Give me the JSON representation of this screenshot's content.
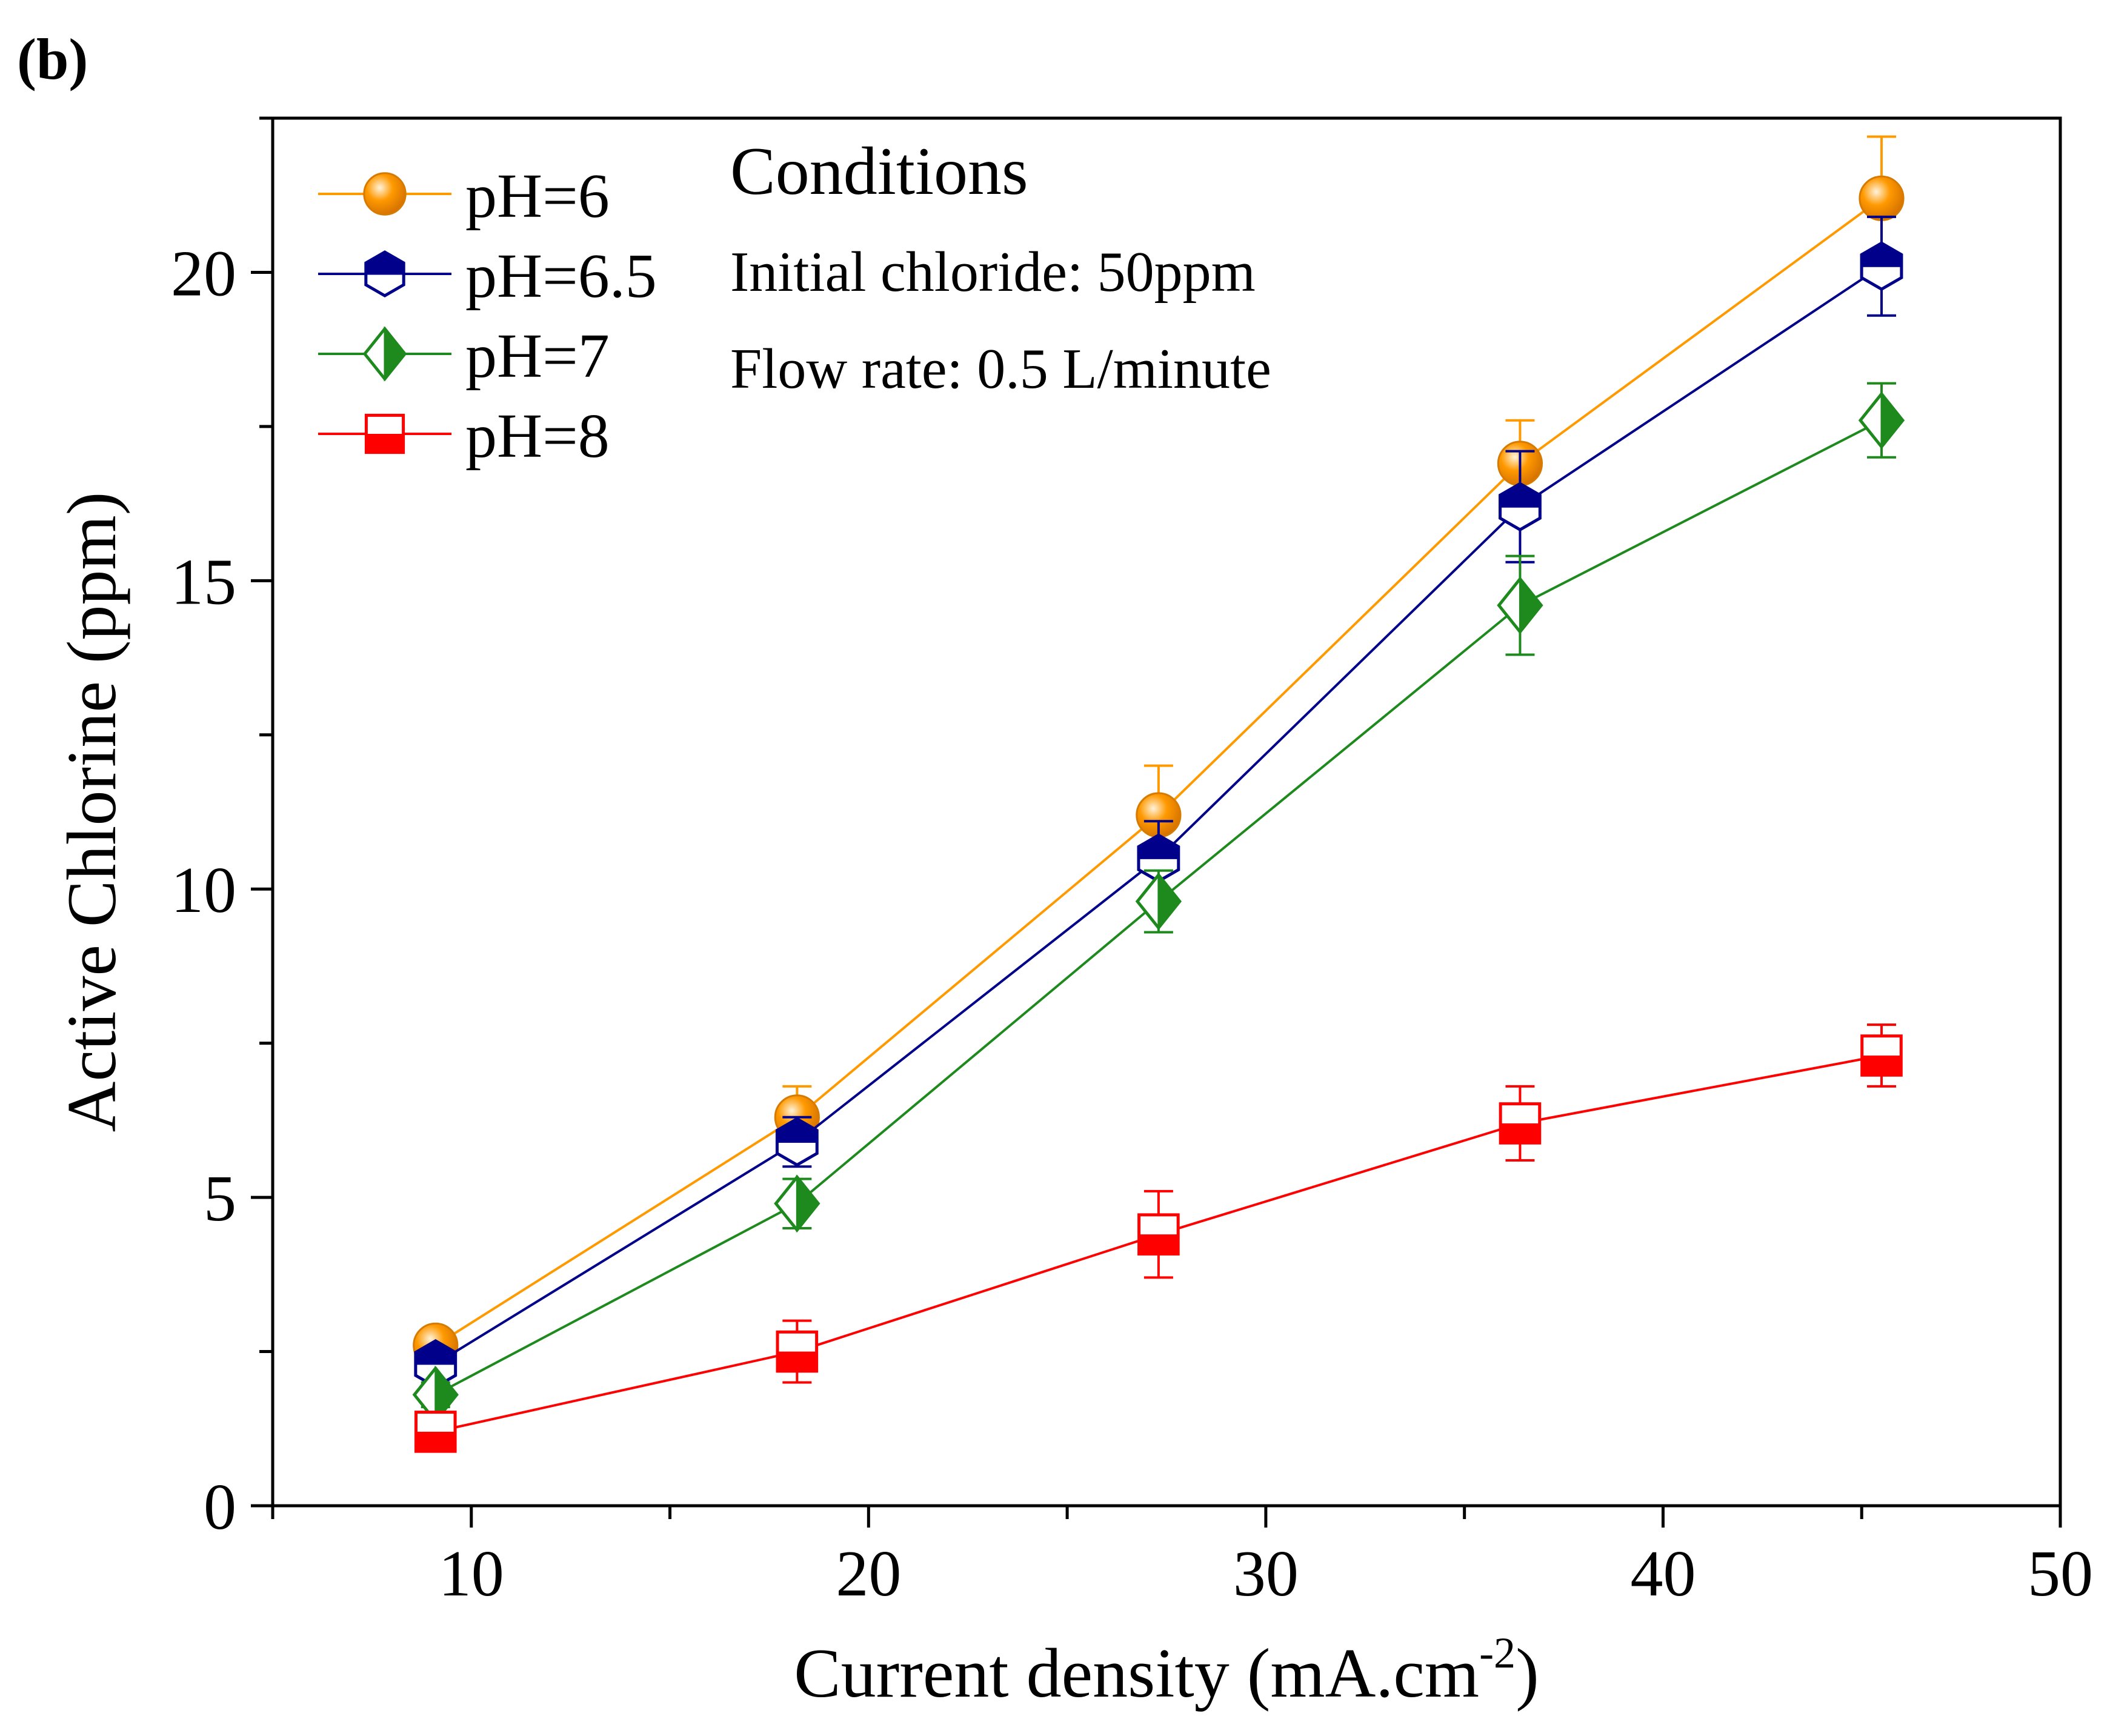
{
  "panel_label": "(b)",
  "chart_data": {
    "type": "line",
    "title": "",
    "xlabel": "Current density (mA.cm",
    "xlabel_sup": "-2",
    "xlabel_tail": ")",
    "ylabel": "Active Chlorine (ppm)",
    "xlim": [
      5,
      50
    ],
    "ylim": [
      0,
      22.5
    ],
    "x_ticks": [
      10,
      20,
      30,
      40,
      50
    ],
    "x_tick_labels": [
      "10",
      "20",
      "30",
      "40",
      "50"
    ],
    "x_minor_ticks": [
      5,
      15,
      25,
      35,
      45
    ],
    "y_ticks": [
      0,
      5,
      10,
      15,
      20
    ],
    "y_tick_labels": [
      "0",
      "5",
      "10",
      "15",
      "20"
    ],
    "y_minor_ticks": [
      2.5,
      7.5,
      12.5,
      17.5,
      22.5
    ],
    "x": [
      9.1,
      18.2,
      27.3,
      36.4,
      45.5
    ],
    "series": [
      {
        "name": "pH=6",
        "marker": "sphere",
        "color": "#ff9900",
        "values": [
          2.6,
          6.3,
          11.2,
          16.9,
          21.2
        ],
        "errors": [
          0.2,
          0.5,
          0.8,
          0.7,
          1.0
        ]
      },
      {
        "name": "pH=6.5",
        "marker": "hexagon",
        "color": "#00008b",
        "values": [
          2.3,
          5.9,
          10.5,
          16.2,
          20.1
        ],
        "errors": [
          0.2,
          0.4,
          0.6,
          0.9,
          0.8
        ]
      },
      {
        "name": "pH=7",
        "marker": "diamond",
        "color": "#1e8a1e",
        "values": [
          1.8,
          4.9,
          9.8,
          14.6,
          17.6
        ],
        "errors": [
          0.2,
          0.4,
          0.5,
          0.8,
          0.6
        ]
      },
      {
        "name": "pH=8",
        "marker": "square",
        "color": "#ff0000",
        "values": [
          1.2,
          2.5,
          4.4,
          6.2,
          7.3
        ],
        "errors": [
          0.2,
          0.5,
          0.7,
          0.6,
          0.5
        ]
      }
    ],
    "legend_position": "top-left",
    "annotations": [
      "Conditions",
      "Initial chloride: 50ppm",
      "Flow rate: 0.5 L/minute"
    ]
  }
}
